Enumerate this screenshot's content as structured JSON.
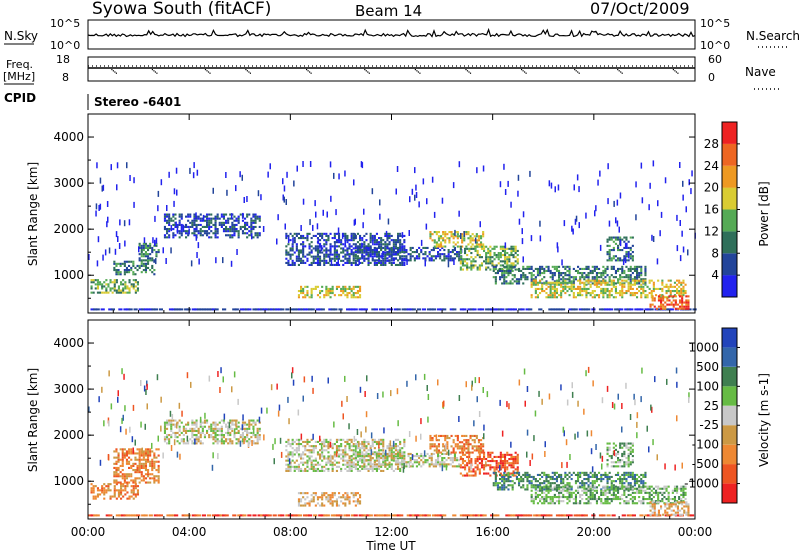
{
  "header": {
    "station": "Syowa South (fitACF)",
    "beam": "Beam 14",
    "date": "07/Oct/2009"
  },
  "strip_labels": {
    "nsky": "N.Sky",
    "freq_line1": "Freq.",
    "freq_line2": "[MHz]",
    "cpid": "CPID",
    "nsearch": "N.Search",
    "nave": "Nave",
    "nsky_tick_top": "10^5",
    "nsky_tick_bottom": "10^0",
    "freq_tick_top": "18",
    "freq_tick_bottom": "8",
    "nave_tick_top": "60",
    "nave_tick_bottom": "0",
    "cpid_value": "Stereo -6401"
  },
  "colors": {
    "power_scale": [
      "#2222ee",
      "#22449a",
      "#2f6f5a",
      "#55aa55",
      "#d9cc33",
      "#ee9922",
      "#ee6622",
      "#ee2222"
    ],
    "velocity_scale": [
      "#2244bb",
      "#3366aa",
      "#3f7f50",
      "#66bb44",
      "#c8c8c8",
      "#cc9944",
      "#ee8833",
      "#ee5522",
      "#ee2222"
    ]
  },
  "chart_data": [
    {
      "type": "heatmap",
      "name": "power",
      "ylabel": "Slant Range [km]",
      "colorbar_label": "Power [dB]",
      "colorbar_ticks": [
        "4",
        "8",
        "12",
        "16",
        "20",
        "24",
        "28"
      ],
      "ylim": [
        180,
        4500
      ],
      "yticks": [
        "1000",
        "2000",
        "3000",
        "4000"
      ],
      "xticks": [
        "00:00",
        "04:00",
        "08:00",
        "12:00",
        "16:00",
        "20:00",
        "00:00"
      ],
      "xlabel": "Time UT",
      "patches": [
        {
          "t0": 0.1,
          "t1": 2.0,
          "r0": 600,
          "r1": 900,
          "level": 3
        },
        {
          "t0": 1.0,
          "t1": 2.6,
          "r0": 1000,
          "r1": 1300,
          "level": 2
        },
        {
          "t0": 2.0,
          "t1": 2.8,
          "r0": 1300,
          "r1": 1700,
          "level": 2
        },
        {
          "t0": 3.0,
          "t1": 6.8,
          "r0": 1800,
          "r1": 2300,
          "level": 1
        },
        {
          "t0": 7.8,
          "t1": 12.5,
          "r0": 1200,
          "r1": 1900,
          "level": 1
        },
        {
          "t0": 8.3,
          "t1": 10.8,
          "r0": 500,
          "r1": 750,
          "level": 4
        },
        {
          "t0": 10.3,
          "t1": 14.8,
          "r0": 1300,
          "r1": 1600,
          "level": 1
        },
        {
          "t0": 13.5,
          "t1": 15.6,
          "r0": 1600,
          "r1": 1950,
          "level": 4
        },
        {
          "t0": 14.7,
          "t1": 17.0,
          "r0": 1100,
          "r1": 1600,
          "level": 3
        },
        {
          "t0": 16.0,
          "t1": 22.0,
          "r0": 800,
          "r1": 1200,
          "level": 2
        },
        {
          "t0": 17.5,
          "t1": 23.6,
          "r0": 500,
          "r1": 900,
          "level": 4
        },
        {
          "t0": 20.5,
          "t1": 21.5,
          "r0": 1300,
          "r1": 1800,
          "level": 2
        },
        {
          "t0": 22.2,
          "t1": 23.7,
          "r0": 250,
          "r1": 550,
          "level": 6
        }
      ]
    },
    {
      "type": "heatmap",
      "name": "velocity",
      "ylabel": "Slant Range [km]",
      "colorbar_label": "Velocity [m s-1]",
      "colorbar_ticks": [
        "1000",
        "500",
        "100",
        "25",
        "-25",
        "-100",
        "-500",
        "-1000"
      ],
      "ylim": [
        180,
        4500
      ],
      "yticks": [
        "1000",
        "2000",
        "3000",
        "4000"
      ],
      "xticks": [
        "00:00",
        "04:00",
        "08:00",
        "12:00",
        "16:00",
        "20:00",
        "00:00"
      ],
      "xlabel": "Time UT",
      "patches": [
        {
          "t0": 0.1,
          "t1": 2.0,
          "r0": 600,
          "r1": 950,
          "level": 6
        },
        {
          "t0": 1.0,
          "t1": 2.8,
          "r0": 950,
          "r1": 1700,
          "level": 6
        },
        {
          "t0": 3.0,
          "t1": 6.8,
          "r0": 1800,
          "r1": 2300,
          "level": 4
        },
        {
          "t0": 7.8,
          "t1": 12.5,
          "r0": 1200,
          "r1": 1900,
          "level": 4
        },
        {
          "t0": 8.3,
          "t1": 10.8,
          "r0": 450,
          "r1": 750,
          "level": 5
        },
        {
          "t0": 10.3,
          "t1": 14.8,
          "r0": 1300,
          "r1": 1600,
          "level": 4
        },
        {
          "t0": 13.5,
          "t1": 15.6,
          "r0": 1600,
          "r1": 2000,
          "level": 6
        },
        {
          "t0": 14.7,
          "t1": 17.0,
          "r0": 1100,
          "r1": 1600,
          "level": 7
        },
        {
          "t0": 16.0,
          "t1": 22.0,
          "r0": 800,
          "r1": 1200,
          "level": 2
        },
        {
          "t0": 17.5,
          "t1": 23.6,
          "r0": 500,
          "r1": 900,
          "level": 3
        },
        {
          "t0": 20.5,
          "t1": 21.5,
          "r0": 1300,
          "r1": 1800,
          "level": 3
        },
        {
          "t0": 22.2,
          "t1": 23.7,
          "r0": 250,
          "r1": 550,
          "level": 5
        }
      ]
    }
  ]
}
